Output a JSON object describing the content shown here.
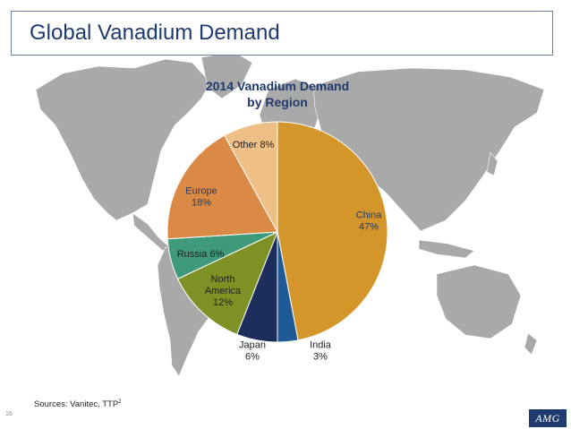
{
  "slide": {
    "title": "Global Vanadium Demand",
    "sources": "Sources: Vanitec, TTP",
    "sources_sup": "2",
    "page_number": "16",
    "logo_text": "AMG"
  },
  "chart_data": {
    "type": "pie",
    "title": "2014 Vanadium Demand by Region",
    "title_lines": [
      "2014 Vanadium Demand",
      "by Region"
    ],
    "slices": [
      {
        "label": "China",
        "value": 47,
        "color": "#d4962a",
        "label_lines": [
          "China",
          "47%"
        ],
        "text_color": "#1f3a6e"
      },
      {
        "label": "India",
        "value": 3,
        "color": "#1f5a96",
        "label_lines": [
          "India",
          "3%"
        ],
        "text_color": "#222222"
      },
      {
        "label": "Japan",
        "value": 6,
        "color": "#1c2e5c",
        "label_lines": [
          "Japan",
          "6%"
        ],
        "text_color": "#222222"
      },
      {
        "label": "North America",
        "value": 12,
        "color": "#7d9125",
        "label_lines": [
          "North",
          "America",
          "12%"
        ],
        "text_color": "#222222"
      },
      {
        "label": "Russia",
        "value": 6,
        "color": "#3f9a7c",
        "label_lines": [
          "Russia 6%"
        ],
        "text_color": "#222222"
      },
      {
        "label": "Europe",
        "value": 18,
        "color": "#da8a44",
        "label_lines": [
          "Europe",
          "18%"
        ],
        "text_color": "#1f3a6e"
      },
      {
        "label": "Other",
        "value": 8,
        "color": "#eebf86",
        "label_lines": [
          "Other 8%"
        ],
        "text_color": "#222222"
      }
    ],
    "start_angle_deg": 0,
    "direction": "clockwise",
    "legend": "none"
  }
}
